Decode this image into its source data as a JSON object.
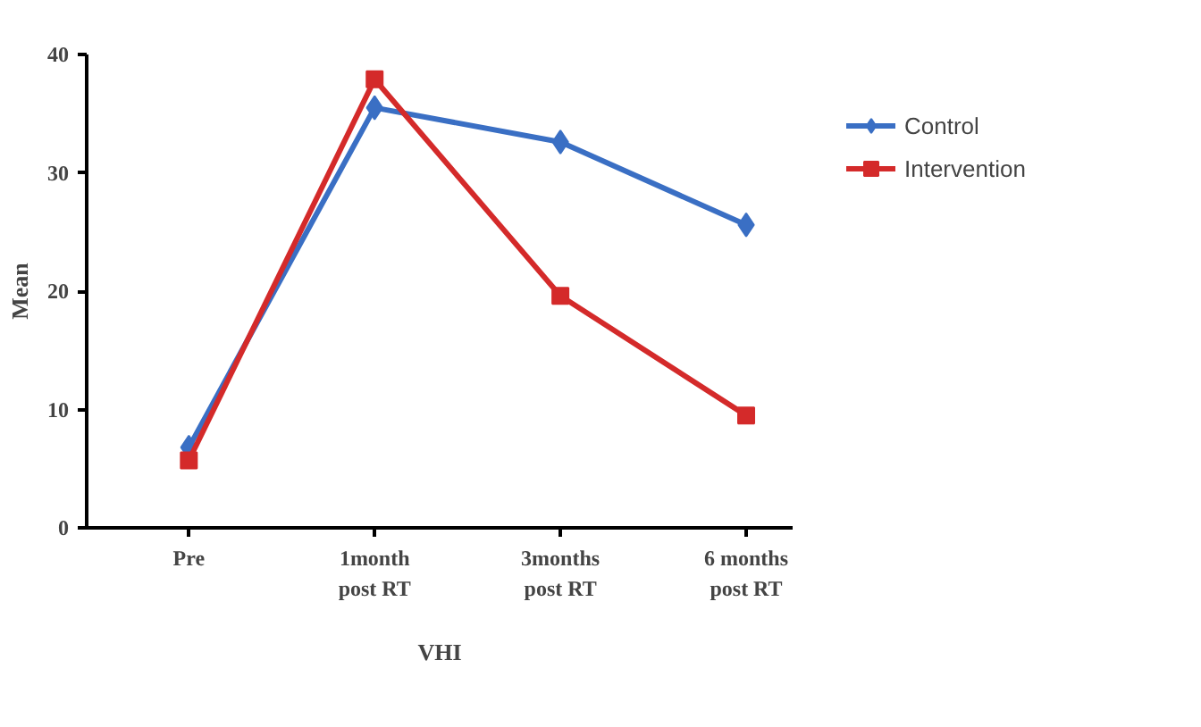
{
  "chart_data": {
    "type": "line",
    "xlabel": "VHI",
    "ylabel": "Mean",
    "categories": [
      "Pre",
      "1month\npost RT",
      "3months\npost RT",
      "6 months\npost RT"
    ],
    "series": [
      {
        "name": "Control",
        "color": "#3a6fc4",
        "marker": "diamond",
        "values": [
          6.8,
          35.5,
          32.6,
          25.6
        ]
      },
      {
        "name": "Intervention",
        "color": "#d42a2a",
        "marker": "square",
        "values": [
          5.7,
          37.9,
          19.6,
          9.5
        ]
      }
    ],
    "ylim": [
      0,
      40
    ],
    "yticks": [
      0,
      10,
      20,
      30,
      40
    ],
    "grid": false,
    "legend": "top right",
    "line_style": "solid"
  }
}
